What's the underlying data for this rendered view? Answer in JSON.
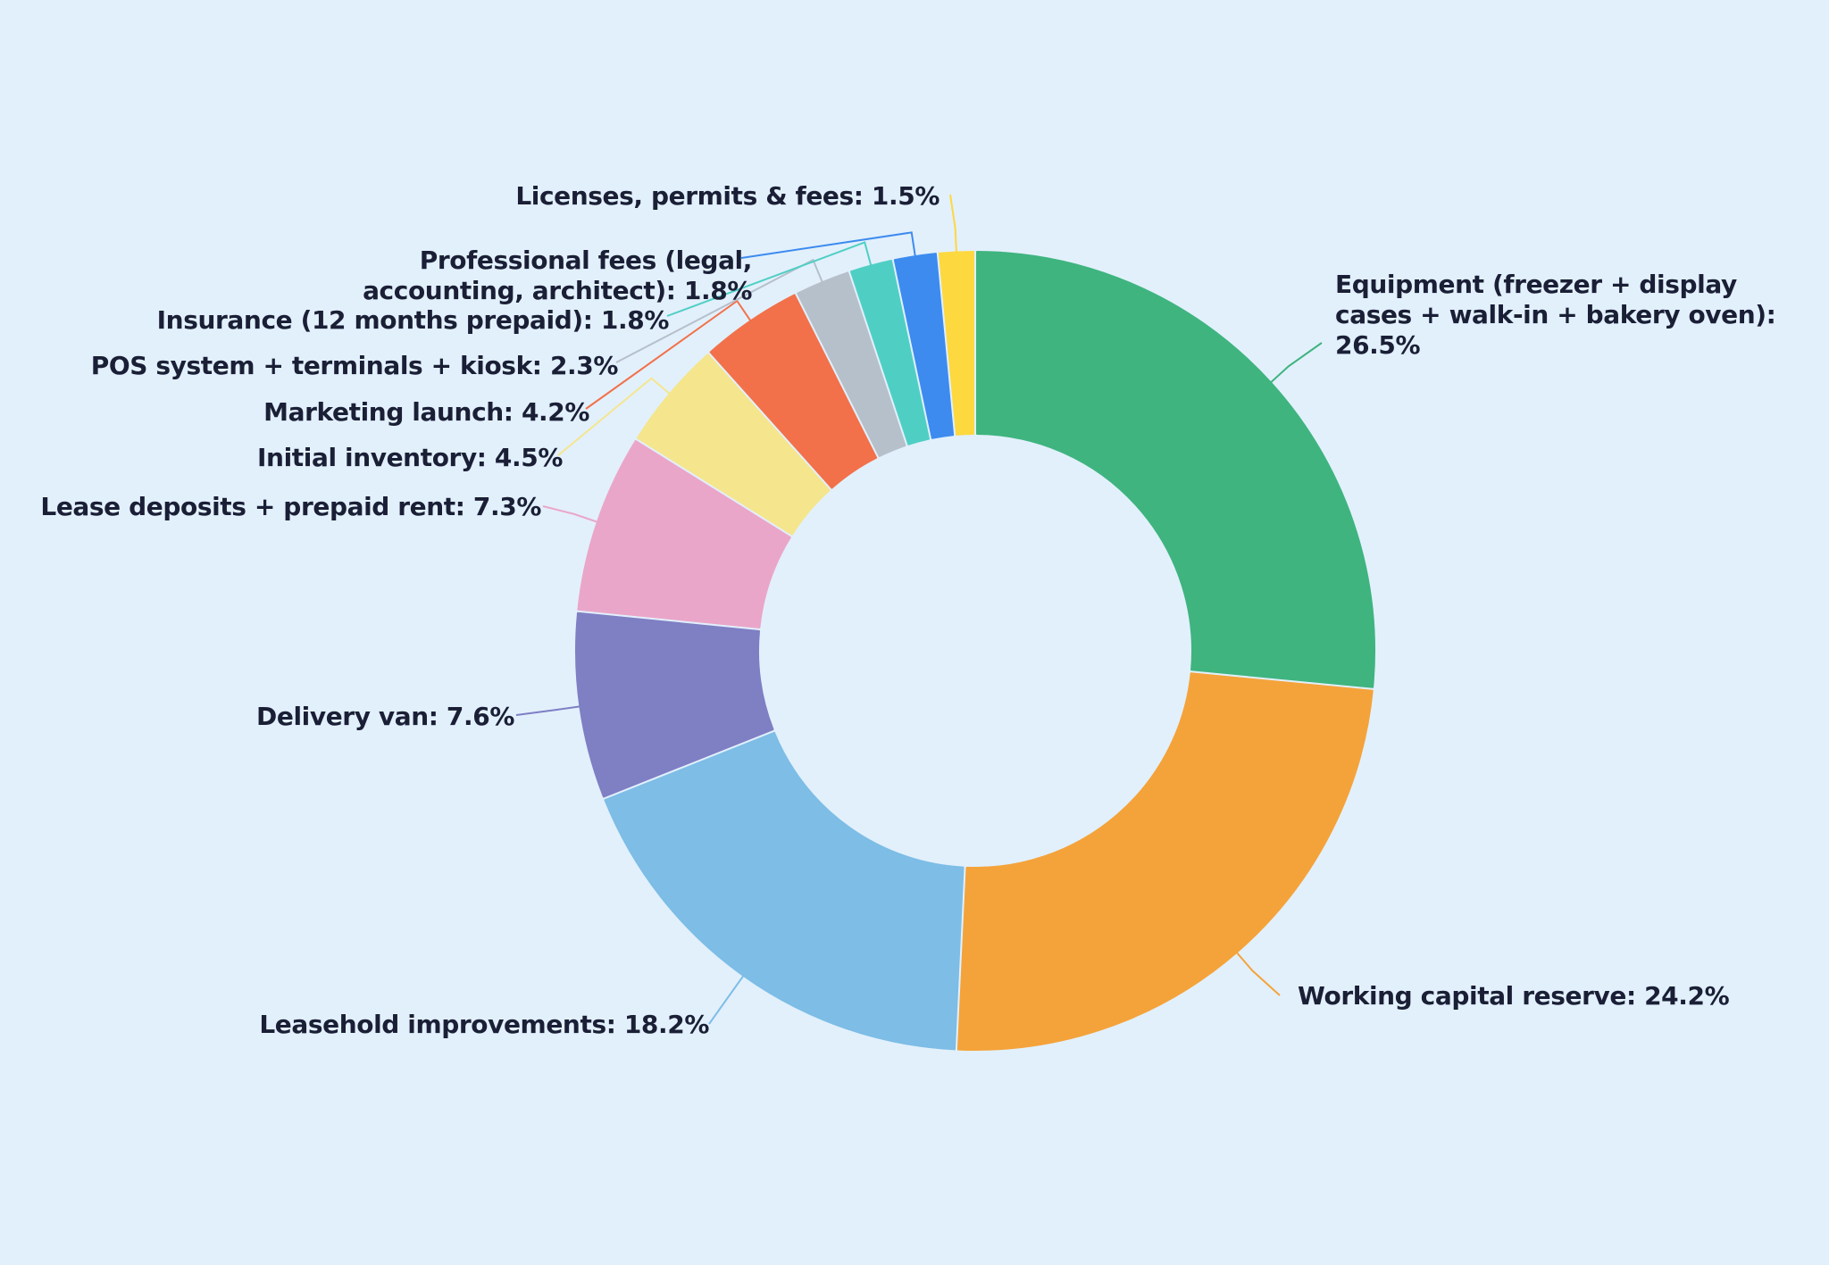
{
  "colors": {
    "background": "#e2f0fc",
    "label_text": "#1a1f36"
  },
  "chart_data": {
    "type": "pie",
    "variant": "donut",
    "title": "",
    "legend": "none",
    "direction": "clockwise",
    "start": "top",
    "slices": [
      {
        "label": "Equipment (freezer + display cases + walk-in + bakery oven)",
        "value": 26.5,
        "color": "#3fb47f",
        "text_lines": [
          "Equipment (freezer + display",
          "cases + walk-in + bakery oven):",
          "26.5%"
        ]
      },
      {
        "label": "Working capital reserve",
        "value": 24.2,
        "color": "#f4a33a",
        "text_lines": [
          "Working capital reserve: 24.2%"
        ]
      },
      {
        "label": "Leasehold improvements",
        "value": 18.2,
        "color": "#7dbde6",
        "text_lines": [
          "Leasehold improvements: 18.2%"
        ]
      },
      {
        "label": "Delivery van",
        "value": 7.6,
        "color": "#7f7fc4",
        "text_lines": [
          "Delivery van: 7.6%"
        ]
      },
      {
        "label": "Lease deposits + prepaid rent",
        "value": 7.3,
        "color": "#eaa6c9",
        "text_lines": [
          "Lease deposits + prepaid rent: 7.3%"
        ]
      },
      {
        "label": "Initial inventory",
        "value": 4.5,
        "color": "#f5e58c",
        "text_lines": [
          "Initial inventory: 4.5%"
        ]
      },
      {
        "label": "Marketing launch",
        "value": 4.2,
        "color": "#f2714a",
        "text_lines": [
          "Marketing launch: 4.2%"
        ]
      },
      {
        "label": "POS system + terminals + kiosk",
        "value": 2.3,
        "color": "#b6c0cb",
        "text_lines": [
          "POS system + terminals + kiosk: 2.3%"
        ]
      },
      {
        "label": "Insurance (12 months prepaid)",
        "value": 1.8,
        "color": "#4fcfc4",
        "text_lines": [
          "Insurance (12 months prepaid): 1.8%"
        ]
      },
      {
        "label": "Professional fees (legal, accounting, architect)",
        "value": 1.8,
        "color": "#3d8bef",
        "text_lines": [
          "Professional fees (legal,",
          "accounting, architect): 1.8%"
        ]
      },
      {
        "label": "Licenses, permits & fees",
        "value": 1.5,
        "color": "#fdd83f",
        "text_lines": [
          "Licenses, permits & fees: 1.5%"
        ]
      }
    ]
  }
}
